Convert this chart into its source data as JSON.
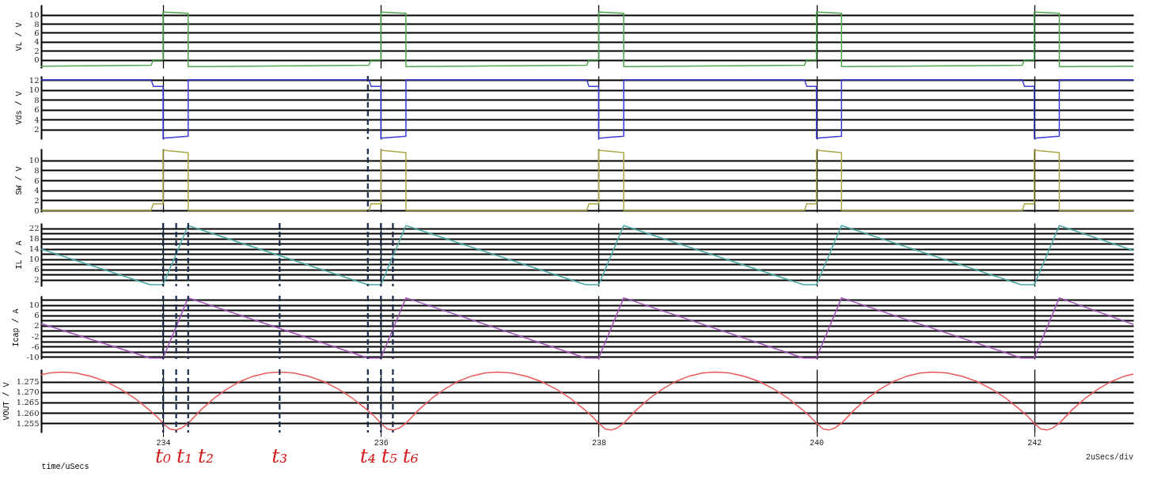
{
  "chart_data": [
    {
      "type": "line",
      "ylabel": "VL / V",
      "xlim": [
        232.88,
        242.91
      ],
      "xticks": [
        234,
        236,
        238,
        240,
        242
      ],
      "ylim": [
        -1.8,
        12.2
      ],
      "yticks": [
        0,
        2,
        4,
        6,
        8,
        10
      ],
      "grid": true,
      "tick_labels": "y",
      "series": [
        {
          "color": "#4ea64e",
          "x": [
            232.88,
            233.89,
            233.91,
            234,
            234,
            234.23,
            234.23,
            235.89,
            235.91,
            236,
            236,
            236.23,
            236.23,
            237.89,
            237.91,
            238,
            238,
            238.23,
            238.23,
            239.89,
            239.91,
            240,
            240,
            240.23,
            240.23,
            241.89,
            241.91,
            242,
            242,
            242.23,
            242.23,
            242.91
          ],
          "values": [
            -1.4,
            -1.2,
            0,
            0,
            10.6,
            10.3,
            -1.5,
            -1.2,
            0,
            0,
            10.6,
            10.3,
            -1.5,
            -1.2,
            0,
            0,
            10.6,
            10.3,
            -1.5,
            -1.2,
            0,
            0,
            10.6,
            10.3,
            -1.5,
            -1.2,
            0,
            0,
            10.6,
            10.3,
            -1.5,
            -1.4
          ]
        }
      ]
    },
    {
      "type": "line",
      "ylabel": "Vds / V",
      "xlim": [
        232.88,
        242.91
      ],
      "xticks": [
        234,
        236,
        238,
        240,
        242
      ],
      "ylim": [
        0,
        12.8
      ],
      "yticks": [
        2,
        4,
        6,
        8,
        10,
        12
      ],
      "grid": true,
      "tick_labels": "y",
      "series": [
        {
          "color": "#3c3cd8",
          "x": [
            232.88,
            233.89,
            233.91,
            234,
            234,
            234.23,
            234.23,
            235.89,
            235.91,
            236,
            236,
            236.23,
            236.23,
            237.89,
            237.91,
            238,
            238,
            238.23,
            238.23,
            239.89,
            239.91,
            240,
            240,
            240.23,
            240.23,
            241.89,
            241.91,
            242,
            242,
            242.23,
            242.23,
            242.91
          ],
          "values": [
            12,
            12,
            10.7,
            10.7,
            0.2,
            0.6,
            12,
            12,
            10.7,
            10.7,
            0.2,
            0.6,
            12,
            12,
            10.7,
            10.7,
            0.2,
            0.6,
            12,
            12,
            10.7,
            10.7,
            0.2,
            0.6,
            12,
            12,
            10.7,
            10.7,
            0.2,
            0.6,
            12,
            12
          ]
        }
      ],
      "ref_lines": [
        {
          "axis": "x",
          "value": 235.88,
          "color": "#1a2b4c",
          "line_style": "dashed"
        }
      ]
    },
    {
      "type": "line",
      "ylabel": "SW / V",
      "xlim": [
        232.88,
        242.91
      ],
      "xticks": [
        234,
        236,
        238,
        240,
        242
      ],
      "ylim": [
        -0.3,
        12.3
      ],
      "yticks": [
        0,
        2,
        4,
        6,
        8,
        10
      ],
      "grid": true,
      "tick_labels": "y",
      "series": [
        {
          "color": "#a8a848",
          "x": [
            232.88,
            233.89,
            233.91,
            234,
            234,
            234.23,
            234.23,
            235.89,
            235.91,
            236,
            236,
            236.23,
            236.23,
            237.89,
            237.91,
            238,
            238,
            238.23,
            238.23,
            239.89,
            239.91,
            240,
            240,
            240.23,
            240.23,
            241.89,
            241.91,
            242,
            242,
            242.23,
            242.23,
            242.91
          ],
          "values": [
            0,
            0,
            1.3,
            1.3,
            12,
            11.5,
            0,
            0,
            1.3,
            1.3,
            12,
            11.5,
            0,
            0,
            1.3,
            1.3,
            12,
            11.5,
            0,
            0,
            1.3,
            1.3,
            12,
            11.5,
            0,
            0,
            1.3,
            1.3,
            12,
            11.5,
            0,
            0
          ]
        }
      ],
      "ref_lines": [
        {
          "axis": "x",
          "value": 235.88,
          "color": "#1a2b4c",
          "line_style": "dashed"
        }
      ]
    },
    {
      "type": "line",
      "ylabel": "IL / A",
      "xlim": [
        232.88,
        242.91
      ],
      "xticks": [
        234,
        236,
        238,
        240,
        242
      ],
      "ylim": [
        -0.6,
        24
      ],
      "yticks": [
        2,
        {
          "value": 4,
          "label": null
        },
        6,
        {
          "value": 8,
          "label": null
        },
        10,
        {
          "value": 12,
          "label": null
        },
        14,
        {
          "value": 16,
          "label": null
        },
        18,
        {
          "value": 20,
          "label": null
        },
        22
      ],
      "grid": true,
      "tick_labels": "y",
      "series": [
        {
          "color": "#48a8a8",
          "x": [
            232.88,
            233.88,
            234,
            234.23,
            235.88,
            236,
            236.23,
            237.88,
            238,
            238.23,
            239.88,
            240,
            240.23,
            241.88,
            242,
            242.23,
            242.91
          ],
          "values": [
            13.9,
            0,
            0,
            23,
            0,
            0,
            23,
            0,
            0,
            23,
            0,
            0,
            23,
            0,
            0,
            23,
            13.3
          ]
        }
      ],
      "ref_lines": [
        {
          "axis": "x",
          "value": 234,
          "color": "#1a2b4c",
          "line_style": "dashed"
        },
        {
          "axis": "x",
          "value": 234.12,
          "color": "#1a2b4c",
          "line_style": "dashed"
        },
        {
          "axis": "x",
          "value": 234.23,
          "color": "#1a2b4c",
          "line_style": "dashed"
        },
        {
          "axis": "x",
          "value": 235.07,
          "color": "#1a2b4c",
          "line_style": "dashed"
        },
        {
          "axis": "x",
          "value": 235.88,
          "color": "#1a2b4c",
          "line_style": "dashed"
        },
        {
          "axis": "x",
          "value": 236,
          "color": "#1a2b4c",
          "line_style": "dashed"
        },
        {
          "axis": "x",
          "value": 236.11,
          "color": "#1a2b4c",
          "line_style": "dashed"
        }
      ]
    },
    {
      "type": "line",
      "ylabel": "Icap / A",
      "xlim": [
        232.88,
        242.91
      ],
      "xticks": [
        234,
        236,
        238,
        240,
        242
      ],
      "ylim": [
        -10.8,
        13.5
      ],
      "yticks": [
        -10,
        {
          "value": -8,
          "label": null
        },
        -6,
        {
          "value": -4,
          "label": null
        },
        -2,
        {
          "value": 0,
          "label": null
        },
        2,
        {
          "value": 4,
          "label": null
        },
        6,
        {
          "value": 8,
          "label": null
        },
        10,
        {
          "value": 12,
          "label": null
        }
      ],
      "grid": true,
      "tick_labels": "y",
      "series": [
        {
          "color": "#a050b8",
          "x": [
            232.88,
            233.88,
            234,
            234.23,
            235.88,
            236,
            236.23,
            237.88,
            238,
            238.23,
            239.88,
            240,
            240.23,
            241.88,
            242,
            242.23,
            242.91
          ],
          "values": [
            2.8,
            -10.4,
            -10.4,
            12.7,
            -10.4,
            -10.4,
            12.7,
            -10.4,
            -10.4,
            12.7,
            -10.4,
            -10.4,
            12.7,
            -10.4,
            -10.4,
            12.7,
            2.5
          ]
        }
      ],
      "ref_lines": [
        {
          "axis": "x",
          "value": 234,
          "color": "#1a2b4c",
          "line_style": "dashed"
        },
        {
          "axis": "x",
          "value": 234.12,
          "color": "#1a2b4c",
          "line_style": "dashed"
        },
        {
          "axis": "x",
          "value": 234.23,
          "color": "#1a2b4c",
          "line_style": "dashed"
        },
        {
          "axis": "x",
          "value": 235.07,
          "color": "#1a2b4c",
          "line_style": "dashed"
        },
        {
          "axis": "x",
          "value": 235.88,
          "color": "#1a2b4c",
          "line_style": "dashed"
        },
        {
          "axis": "x",
          "value": 236,
          "color": "#1a2b4c",
          "line_style": "dashed"
        },
        {
          "axis": "x",
          "value": 236.11,
          "color": "#1a2b4c",
          "line_style": "dashed"
        }
      ]
    },
    {
      "type": "line",
      "ylabel": "VOUT / V",
      "xlabel": "time/uSecs",
      "annotations": [
        "2uSecs/div"
      ],
      "xlim": [
        232.88,
        242.91
      ],
      "xticks": [
        234,
        236,
        238,
        240,
        242
      ],
      "ylim": [
        1.2505,
        1.281
      ],
      "yticks": [
        1.255,
        {
          "value": 1.26,
          "label": "1.260"
        },
        1.265,
        {
          "value": 1.27,
          "label": "1.270"
        },
        1.275
      ],
      "grid": true,
      "series": [
        {
          "color": "#e85a5a",
          "x": [
            232.88,
            232.95,
            233.07,
            233.205,
            233.34,
            233.475,
            233.61,
            233.745,
            233.88,
            233.94,
            234,
            234.06,
            234.115,
            234.17,
            234.23,
            234.35,
            234.47,
            234.59,
            234.71,
            234.83,
            234.95,
            235.07,
            235.205,
            235.34,
            235.475,
            235.61,
            235.745,
            235.88,
            235.94,
            236,
            236.06,
            236.115,
            236.17,
            236.23,
            236.35,
            236.47,
            236.59,
            236.71,
            236.83,
            236.95,
            237.07,
            237.205,
            237.34,
            237.475,
            237.61,
            237.745,
            237.88,
            237.94,
            238,
            238.06,
            238.115,
            238.17,
            238.23,
            238.35,
            238.47,
            238.59,
            238.71,
            238.83,
            238.95,
            239.07,
            239.205,
            239.34,
            239.475,
            239.61,
            239.745,
            239.88,
            239.94,
            240,
            240.06,
            240.115,
            240.17,
            240.23,
            240.35,
            240.47,
            240.59,
            240.71,
            240.83,
            240.95,
            241.07,
            241.205,
            241.34,
            241.475,
            241.61,
            241.745,
            241.88,
            241.94,
            242,
            242.06,
            242.115,
            242.17,
            242.23,
            242.35,
            242.47,
            242.59,
            242.71,
            242.83,
            242.91
          ],
          "values": [
            1.2783,
            1.2792,
            1.2797,
            1.2792,
            1.2776,
            1.2751,
            1.2714,
            1.2668,
            1.2611,
            1.2583,
            1.255,
            1.2522,
            1.2517,
            1.2527,
            1.255,
            1.2616,
            1.2671,
            1.2716,
            1.2752,
            1.2777,
            1.2792,
            1.2797,
            1.2792,
            1.2776,
            1.2751,
            1.2714,
            1.2668,
            1.2611,
            1.2583,
            1.255,
            1.2522,
            1.2517,
            1.2527,
            1.255,
            1.2616,
            1.2671,
            1.2716,
            1.2752,
            1.2777,
            1.2792,
            1.2797,
            1.2792,
            1.2776,
            1.2751,
            1.2714,
            1.2668,
            1.2611,
            1.2583,
            1.255,
            1.2522,
            1.2517,
            1.2527,
            1.255,
            1.2616,
            1.2671,
            1.2716,
            1.2752,
            1.2777,
            1.2792,
            1.2797,
            1.2792,
            1.2776,
            1.2751,
            1.2714,
            1.2668,
            1.2611,
            1.2583,
            1.255,
            1.2522,
            1.2517,
            1.2527,
            1.255,
            1.2616,
            1.2671,
            1.2716,
            1.2752,
            1.2777,
            1.2792,
            1.2797,
            1.2792,
            1.2776,
            1.2751,
            1.2714,
            1.2668,
            1.2611,
            1.2583,
            1.255,
            1.2522,
            1.2517,
            1.2527,
            1.255,
            1.2616,
            1.2671,
            1.2716,
            1.2752,
            1.2777,
            1.2787
          ]
        }
      ],
      "ref_lines": [
        {
          "axis": "x",
          "value": 234,
          "label": "t₀",
          "color": "#1a2b4c",
          "line_style": "dashed"
        },
        {
          "axis": "x",
          "value": 234.12,
          "label": "t₁",
          "color": "#1a2b4c",
          "line_style": "dashed"
        },
        {
          "axis": "x",
          "value": 234.23,
          "label": "t₂",
          "color": "#1a2b4c",
          "line_style": "dashed"
        },
        {
          "axis": "x",
          "value": 235.07,
          "label": "t₃",
          "color": "#1a2b4c",
          "line_style": "dashed"
        },
        {
          "axis": "x",
          "value": 235.88,
          "label": "t₄",
          "color": "#1a2b4c",
          "line_style": "dashed"
        },
        {
          "axis": "x",
          "value": 236,
          "label": "t₅",
          "color": "#1a2b4c",
          "line_style": "dashed"
        },
        {
          "axis": "x",
          "value": 236.11,
          "label": "t₆",
          "color": "#1a2b4c",
          "line_style": "dashed"
        }
      ]
    }
  ]
}
